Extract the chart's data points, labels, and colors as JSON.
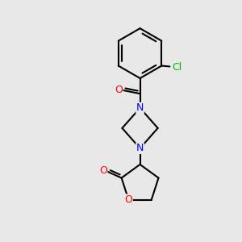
{
  "background_color": "#e8e8e8",
  "bond_color": "#000000",
  "bond_width": 1.5,
  "atom_colors": {
    "N": "#0000ff",
    "O": "#ff0000",
    "Cl": "#00bb00",
    "C": "#000000"
  },
  "figsize": [
    3.0,
    3.0
  ],
  "dpi": 100
}
